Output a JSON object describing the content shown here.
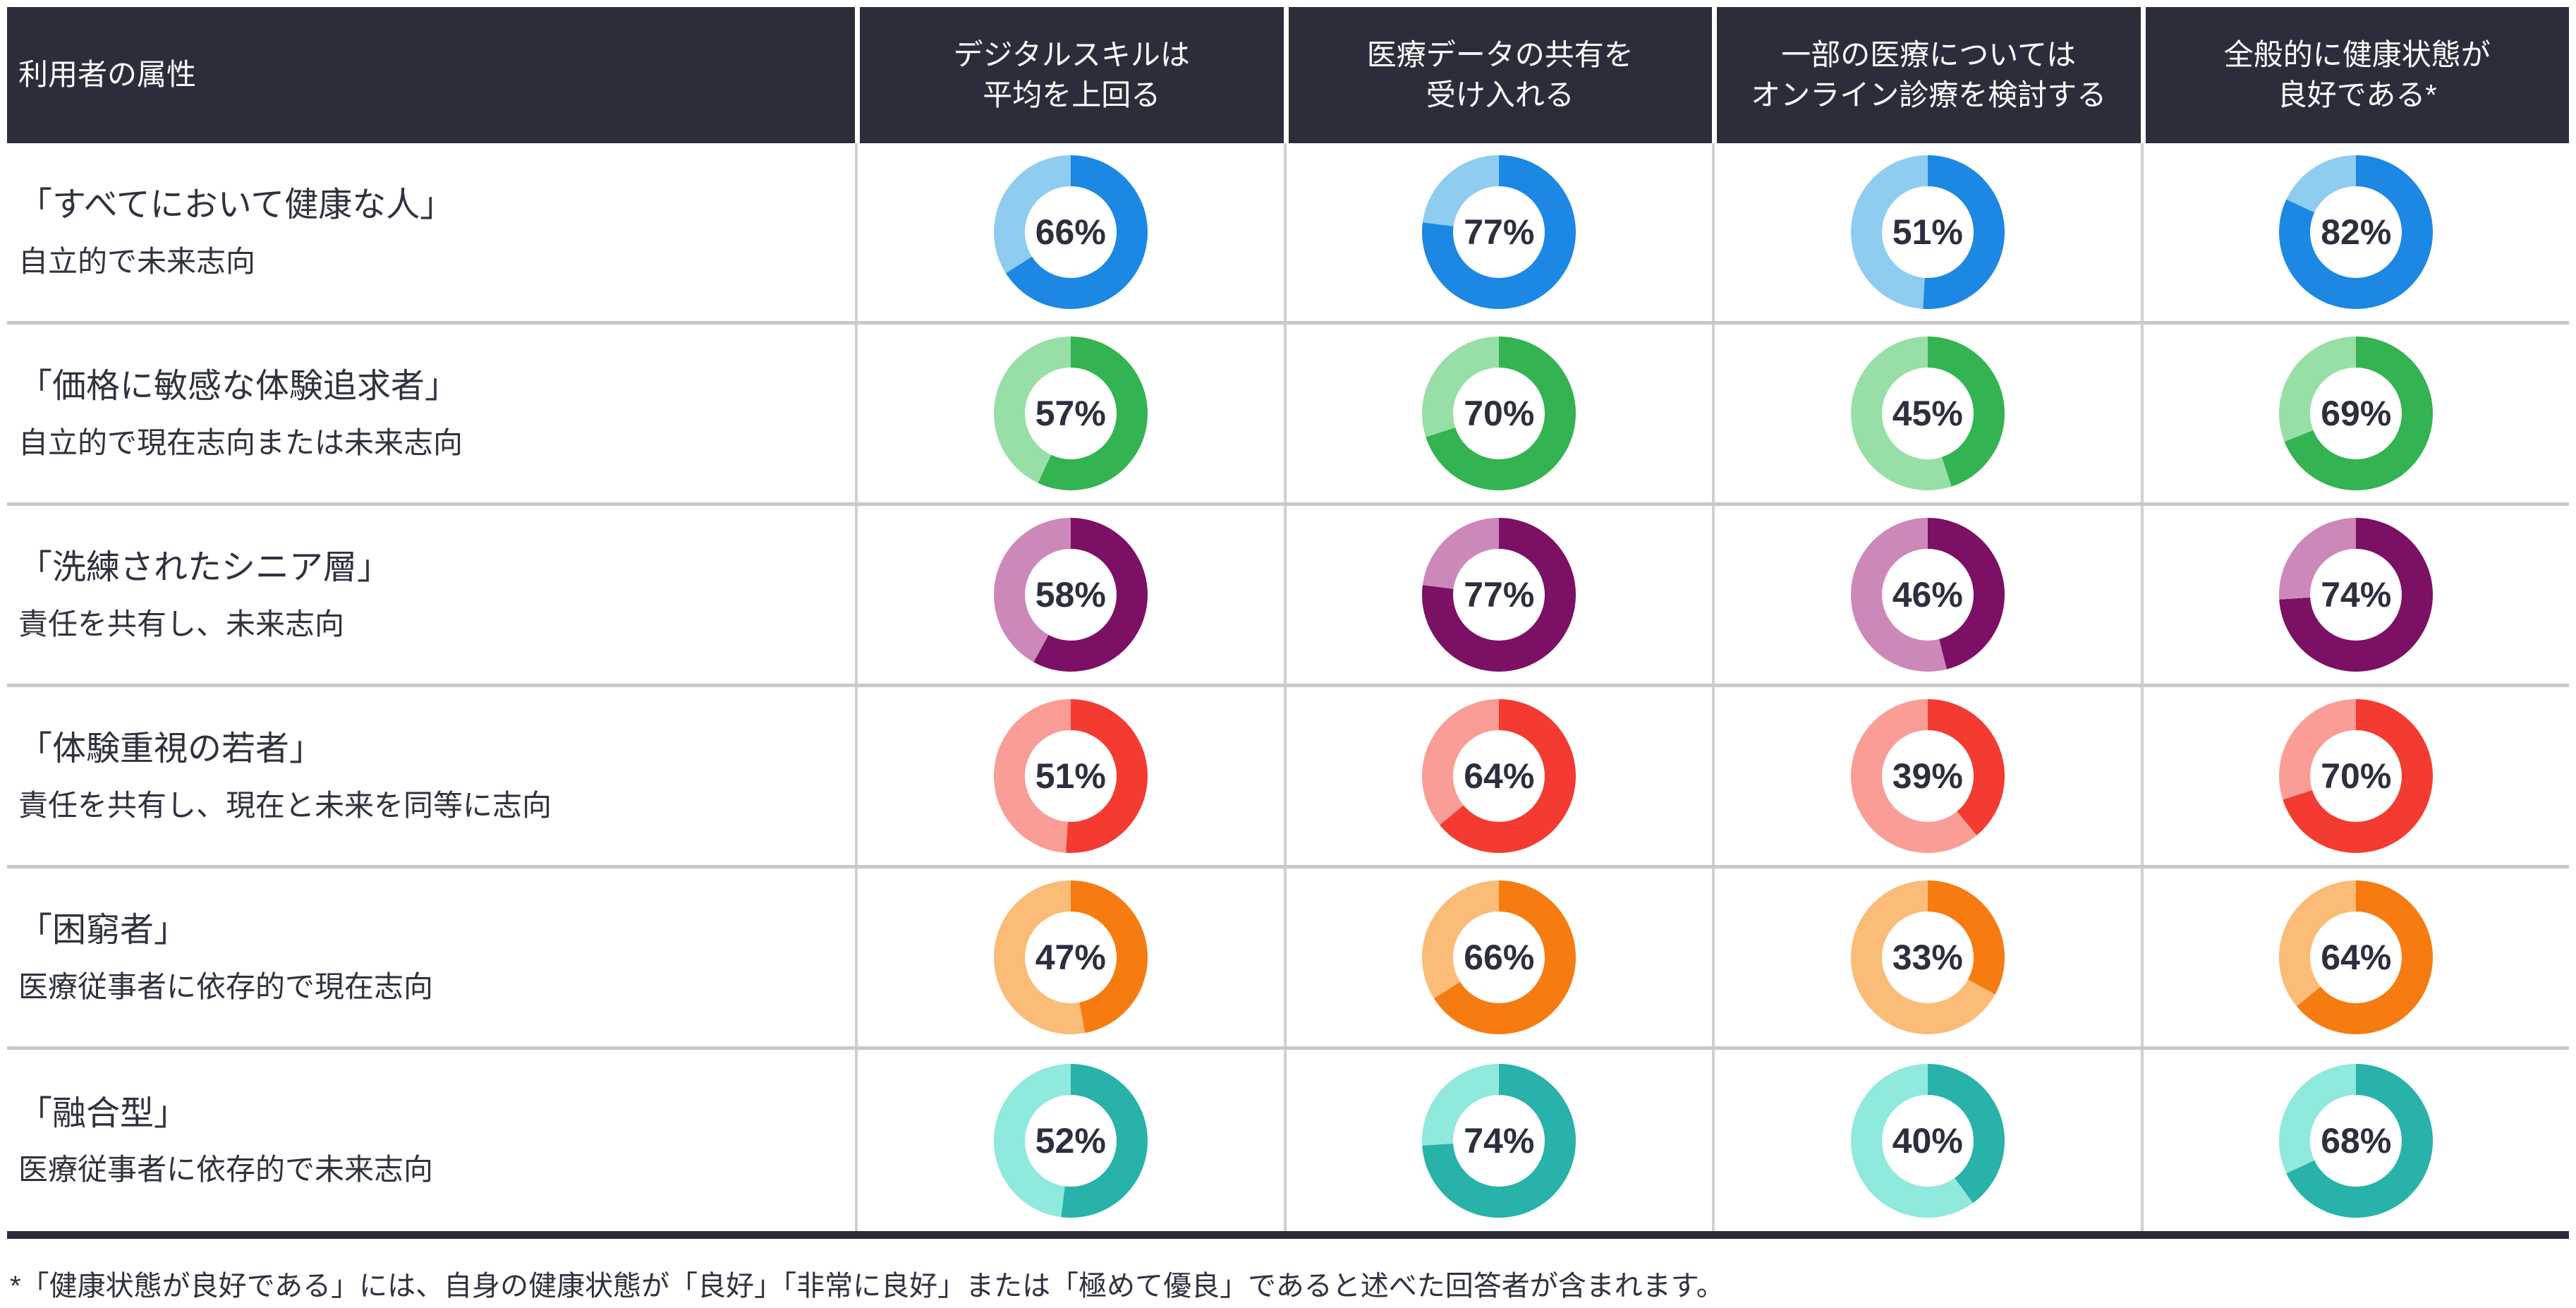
{
  "header": {
    "attribute_label": "利用者の属性"
  },
  "chart_data": {
    "type": "pie",
    "subtype": "donut-grid",
    "unit": "%",
    "arc_style": "starts at 12 o'clock, clockwise, dark = value, light = remainder",
    "columns": [
      "デジタルスキルは\n平均を上回る",
      "医療データの共有を\n受け入れる",
      "一部の医療については\nオンライン診療を検討する",
      "全般的に健康状態が\n良好である*"
    ],
    "rows": [
      {
        "name": "「すべてにおいて健康な人」",
        "description": "自立的で未来志向",
        "color_main": "#1d87e4",
        "color_light": "#8ecdf0",
        "values": [
          66,
          77,
          51,
          82
        ]
      },
      {
        "name": "「価格に敏感な体験追求者」",
        "description": "自立的で現在志向または未来志向",
        "color_main": "#33b351",
        "color_light": "#98dfa7",
        "values": [
          57,
          70,
          45,
          69
        ]
      },
      {
        "name": "「洗練されたシニア層」",
        "description": "責任を共有し、未来志向",
        "color_main": "#7b1065",
        "color_light": "#cd88ba",
        "values": [
          58,
          77,
          46,
          74
        ]
      },
      {
        "name": "「体験重視の若者」",
        "description": "責任を共有し、現在と未来を同等に志向",
        "color_main": "#f43b31",
        "color_light": "#f99d96",
        "values": [
          51,
          64,
          39,
          70
        ]
      },
      {
        "name": "「困窮者」",
        "description": "医療従事者に依存的で現在志向",
        "color_main": "#f67c12",
        "color_light": "#fabc77",
        "values": [
          47,
          66,
          33,
          64
        ]
      },
      {
        "name": "「融合型」",
        "description": "医療従事者に依存的で未来志向",
        "color_main": "#28b2aa",
        "color_light": "#90e9dd",
        "values": [
          52,
          74,
          40,
          68
        ]
      }
    ]
  },
  "footnote": "*「健康状態が良好である」には、自身の健康状態が「良好」「非常に良好」または「極めて優良」であると述べた回答者が含まれます。",
  "colors": {
    "header_bg": "#2b2e3a",
    "header_text": "#ffffff",
    "body_text": "#2f323f",
    "grid_line_h": "#c8c9ce",
    "grid_line_v": "#cfd0d4",
    "bottom_border": "#2b2e3a",
    "background": "#ffffff"
  }
}
